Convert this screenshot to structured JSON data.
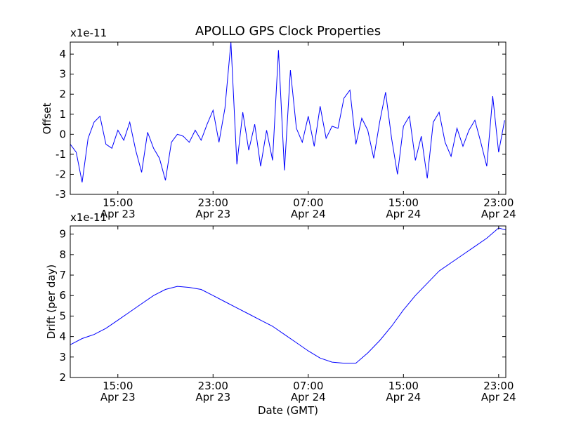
{
  "chart_data": [
    {
      "type": "line",
      "title": "APOLLO GPS Clock Properties",
      "ylabel": "Offset",
      "xlabel": "",
      "y_multiplier": "x1e-11",
      "x_range_hours": [
        11.0,
        23.6
      ],
      "ylim": [
        -3,
        4.6
      ],
      "y_ticks": [
        "-3",
        "-2",
        "-1",
        "0",
        "1",
        "2",
        "3",
        "4"
      ],
      "x_ticks": [
        {
          "t": 15,
          "time": "15:00",
          "date": "Apr 23"
        },
        {
          "t": 23,
          "time": "23:00",
          "date": "Apr 23"
        },
        {
          "t": 31,
          "time": "07:00",
          "date": "Apr 24"
        },
        {
          "t": 39,
          "time": "15:00",
          "date": "Apr 24"
        },
        {
          "t": 47,
          "time": "23:00",
          "date": "Apr 24"
        }
      ],
      "x_range": [
        11.0,
        47.6
      ],
      "line_color": "#0000ff",
      "x": [
        11.0,
        11.5,
        12.0,
        12.5,
        13.0,
        13.5,
        14.0,
        14.5,
        15.0,
        15.5,
        16.0,
        16.5,
        17.0,
        17.5,
        18.0,
        18.5,
        19.0,
        19.5,
        20.0,
        20.5,
        21.0,
        21.5,
        22.0,
        22.5,
        23.0,
        23.5,
        24.0,
        24.5,
        25.0,
        25.5,
        26.0,
        26.5,
        27.0,
        27.5,
        28.0,
        28.5,
        29.0,
        29.5,
        30.0,
        30.5,
        31.0,
        31.5,
        32.0,
        32.5,
        33.0,
        33.5,
        34.0,
        34.5,
        35.0,
        35.5,
        36.0,
        36.5,
        37.0,
        37.5,
        38.0,
        38.5,
        39.0,
        39.5,
        40.0,
        40.5,
        41.0,
        41.5,
        42.0,
        42.5,
        43.0,
        43.5,
        44.0,
        44.5,
        45.0,
        45.5,
        46.0,
        46.5,
        47.0,
        47.5
      ],
      "y": [
        -0.5,
        -0.9,
        -2.4,
        -0.2,
        0.6,
        0.9,
        -0.5,
        -0.7,
        0.2,
        -0.3,
        0.6,
        -0.8,
        -1.9,
        0.1,
        -0.7,
        -1.2,
        -2.3,
        -0.4,
        0.0,
        -0.1,
        -0.4,
        0.2,
        -0.3,
        0.5,
        1.2,
        -0.4,
        1.3,
        4.6,
        -1.5,
        1.1,
        -0.8,
        0.5,
        -1.6,
        0.2,
        -1.3,
        4.2,
        -1.8,
        3.2,
        0.3,
        -0.4,
        0.9,
        -0.6,
        1.4,
        -0.2,
        0.4,
        0.3,
        1.8,
        2.2,
        -0.5,
        0.8,
        0.2,
        -1.2,
        0.6,
        2.1,
        -0.2,
        -2.0,
        0.4,
        0.9,
        -1.3,
        -0.1,
        -2.2,
        0.6,
        1.1,
        -0.4,
        -1.1,
        0.3,
        -0.6,
        0.2,
        0.7,
        -0.4,
        -1.6,
        1.9,
        -0.9,
        0.7
      ]
    },
    {
      "type": "line",
      "ylabel": "Drift (per day)",
      "xlabel": "Date (GMT)",
      "y_multiplier": "x1e-11",
      "ylim": [
        2,
        9.4
      ],
      "y_ticks": [
        "2",
        "3",
        "4",
        "5",
        "6",
        "7",
        "8",
        "9"
      ],
      "x_range": [
        11.0,
        47.6
      ],
      "x_ticks": [
        {
          "t": 15,
          "time": "15:00",
          "date": "Apr 23"
        },
        {
          "t": 23,
          "time": "23:00",
          "date": "Apr 23"
        },
        {
          "t": 31,
          "time": "07:00",
          "date": "Apr 24"
        },
        {
          "t": 39,
          "time": "15:00",
          "date": "Apr 24"
        },
        {
          "t": 47,
          "time": "23:00",
          "date": "Apr 24"
        }
      ],
      "line_color": "#0000ff",
      "x": [
        11.0,
        12.0,
        13.0,
        14.0,
        15.0,
        16.0,
        17.0,
        18.0,
        19.0,
        20.0,
        21.0,
        22.0,
        23.0,
        24.0,
        25.0,
        26.0,
        27.0,
        28.0,
        29.0,
        30.0,
        31.0,
        32.0,
        33.0,
        34.0,
        35.0,
        36.0,
        37.0,
        38.0,
        39.0,
        40.0,
        41.0,
        42.0,
        43.0,
        44.0,
        45.0,
        46.0,
        47.0,
        47.6
      ],
      "y": [
        3.6,
        3.9,
        4.1,
        4.4,
        4.8,
        5.2,
        5.6,
        6.0,
        6.3,
        6.45,
        6.4,
        6.3,
        6.0,
        5.7,
        5.4,
        5.1,
        4.8,
        4.5,
        4.1,
        3.7,
        3.3,
        2.95,
        2.75,
        2.7,
        2.7,
        3.2,
        3.8,
        4.5,
        5.3,
        6.0,
        6.6,
        7.2,
        7.6,
        8.0,
        8.4,
        8.8,
        9.3,
        9.2
      ]
    }
  ]
}
